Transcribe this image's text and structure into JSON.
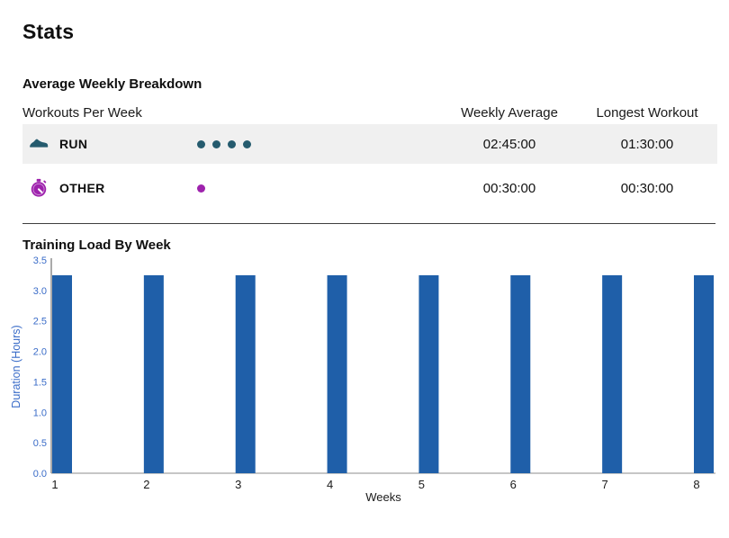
{
  "page": {
    "title": "Stats"
  },
  "breakdown": {
    "heading": "Average Weekly Breakdown",
    "table": {
      "columns": [
        "Workouts Per Week",
        "Weekly Average",
        "Longest Workout"
      ],
      "rows": [
        {
          "activity": "RUN",
          "icon": "running-shoe-icon",
          "color": "#255b6e",
          "workouts_per_week": 4,
          "weekly_average": "02:45:00",
          "longest_workout": "01:30:00"
        },
        {
          "activity": "OTHER",
          "icon": "stopwatch-icon",
          "color": "#9e22ad",
          "workouts_per_week": 1,
          "weekly_average": "00:30:00",
          "longest_workout": "00:30:00"
        }
      ],
      "shaded_row_color": "#f0f0f0"
    }
  },
  "training_load": {
    "heading": "Training Load By Week"
  },
  "chart_data": {
    "type": "bar",
    "title": "Training Load By Week",
    "categories": [
      "1",
      "2",
      "3",
      "4",
      "5",
      "6",
      "7",
      "8"
    ],
    "values": [
      3.25,
      3.25,
      3.25,
      3.25,
      3.25,
      3.25,
      3.25,
      3.25
    ],
    "xlabel": "Weeks",
    "ylabel": "Duration (Hours)",
    "ylim": [
      0,
      3.5
    ],
    "ytick_step": 0.5,
    "grid": false,
    "legend": false,
    "bar_color": "#1f5fa9",
    "axis_text_color": "#3a6cc8",
    "x_text_color": "#1a1a1a"
  }
}
